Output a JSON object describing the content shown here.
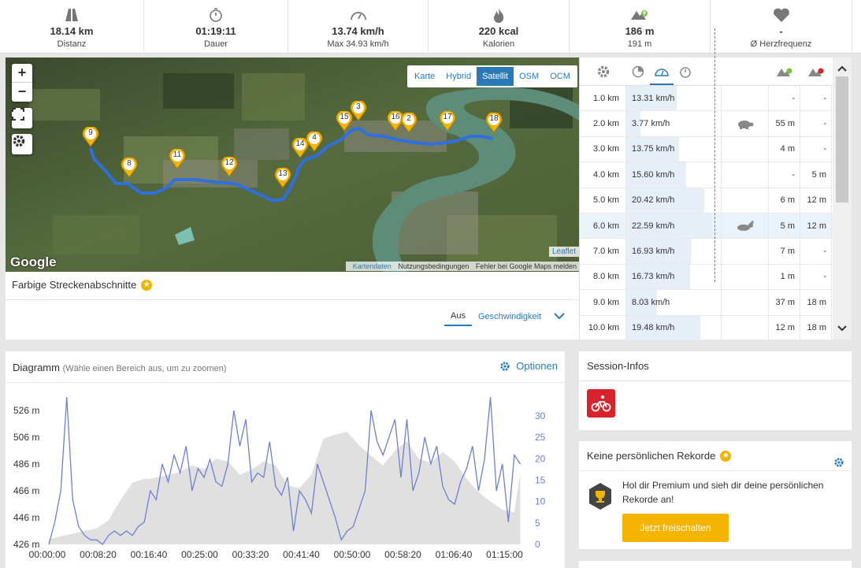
{
  "stats": [
    {
      "icon": "road-icon",
      "value": "18.14 km",
      "label": "Distanz"
    },
    {
      "icon": "stopwatch-icon",
      "value": "01:19:11",
      "label": "Dauer"
    },
    {
      "icon": "speedometer-icon",
      "value": "13.74 km/h",
      "label": "Max 34.93 km/h"
    },
    {
      "icon": "flame-icon",
      "value": "220 kcal",
      "label": "Kalorien"
    },
    {
      "icon": "elevation-up-icon",
      "value": "186 m",
      "label": "191 m"
    },
    {
      "icon": "heart-icon",
      "value": "-",
      "label": "Ø Herzfrequenz"
    }
  ],
  "map": {
    "zoom_in": "+",
    "zoom_out": "−",
    "layers": [
      "Karte",
      "Hybrid",
      "Satellit",
      "OSM",
      "OCM"
    ],
    "active_layer": "Satellit",
    "google_logo": "Google",
    "leaflet": "Leaflet",
    "attribution": [
      "Kartendaten",
      "Nutzungsbedingungen",
      "Fehler bei Google Maps melden"
    ],
    "markers": [
      "9",
      "8",
      "11",
      "12",
      "13",
      "14",
      "4",
      "15",
      "3",
      "16",
      "2",
      "17",
      "18"
    ],
    "route_color": "#2f6fe0"
  },
  "segments": {
    "title": "Farbige Streckenabschnitte",
    "options": [
      "Aus",
      "Geschwindigkeit"
    ],
    "selected": "Aus"
  },
  "splits": {
    "header_icons": [
      "gear-icon",
      "pie-icon",
      "speedometer-icon",
      "stopwatch-icon",
      "elevation-up-icon",
      "elevation-down-icon"
    ],
    "rows": [
      {
        "km": "1.0 km",
        "speed": "13.31 km/h",
        "speed_val": 13.31,
        "icon": "",
        "up": "-",
        "down": "-"
      },
      {
        "km": "2.0 km",
        "speed": "3.77 km/h",
        "speed_val": 3.77,
        "icon": "turtle",
        "up": "55 m",
        "down": "-"
      },
      {
        "km": "3.0 km",
        "speed": "13.75 km/h",
        "speed_val": 13.75,
        "icon": "",
        "up": "4 m",
        "down": "-"
      },
      {
        "km": "4.0 km",
        "speed": "15.60 km/h",
        "speed_val": 15.6,
        "icon": "",
        "up": "-",
        "down": "5 m"
      },
      {
        "km": "5.0 km",
        "speed": "20.42 km/h",
        "speed_val": 20.42,
        "icon": "",
        "up": "6 m",
        "down": "12 m"
      },
      {
        "km": "6.0 km",
        "speed": "22.59 km/h",
        "speed_val": 22.59,
        "icon": "rabbit",
        "up": "5 m",
        "down": "12 m"
      },
      {
        "km": "7.0 km",
        "speed": "16.93 km/h",
        "speed_val": 16.93,
        "icon": "",
        "up": "7 m",
        "down": "-"
      },
      {
        "km": "8.0 km",
        "speed": "16.73 km/h",
        "speed_val": 16.73,
        "icon": "",
        "up": "1 m",
        "down": "-"
      },
      {
        "km": "9.0 km",
        "speed": "8.03 km/h",
        "speed_val": 8.03,
        "icon": "",
        "up": "37 m",
        "down": "18 m"
      },
      {
        "km": "10.0 km",
        "speed": "19.48 km/h",
        "speed_val": 19.48,
        "icon": "",
        "up": "12 m",
        "down": "18 m"
      }
    ]
  },
  "diagram": {
    "title": "Diagramm",
    "hint": "(Wähle einen Bereich aus, um zu zoomen)",
    "options_label": "Optionen"
  },
  "chart_data": {
    "type": "area",
    "y_left_ticks": [
      "526 m",
      "506 m",
      "486 m",
      "466 m",
      "446 m",
      "426 m"
    ],
    "y_right_ticks": [
      "30",
      "25",
      "20",
      "15",
      "10",
      "5",
      "0"
    ],
    "x_ticks": [
      "00:00:00",
      "00:08:20",
      "00:16:40",
      "00:25:00",
      "00:33:20",
      "00:41:40",
      "00:50:00",
      "00:58:20",
      "01:06:40",
      "01:15:00"
    ],
    "ylim_left": [
      426,
      526
    ],
    "ylim_right": [
      0,
      30
    ],
    "series": [
      {
        "name": "",
        "color": "#e0e0e0",
        "x_min": [
          0,
          3,
          6,
          8,
          10,
          12,
          14,
          16,
          17,
          18,
          20,
          22,
          24,
          26,
          28,
          30,
          32,
          34,
          36,
          38,
          40,
          42,
          44,
          46,
          48,
          50,
          52,
          54,
          56,
          58,
          60,
          62,
          64,
          66,
          68,
          70,
          72,
          74,
          76,
          78,
          79
        ],
        "values": [
          430,
          433,
          436,
          438,
          444,
          459,
          472,
          475,
          475,
          476,
          478,
          480,
          485,
          482,
          490,
          488,
          478,
          482,
          488,
          485,
          470,
          468,
          478,
          505,
          508,
          510,
          500,
          492,
          485,
          496,
          503,
          490,
          487,
          495,
          488,
          475,
          465,
          458,
          452,
          450,
          480
        ]
      },
      {
        "name": "",
        "color": "#6f7fd0",
        "x_min": [
          0,
          1,
          2,
          3,
          4,
          5,
          6,
          7,
          8,
          9,
          10,
          11,
          12,
          13,
          14,
          15,
          16,
          17,
          18,
          19,
          20,
          21,
          22,
          23,
          24,
          25,
          26,
          27,
          28,
          29,
          30,
          31,
          32,
          33,
          34,
          35,
          36,
          37,
          38,
          39,
          40,
          41,
          42,
          43,
          44,
          45,
          46,
          47,
          48,
          49,
          50,
          51,
          52,
          53,
          54,
          55,
          56,
          57,
          58,
          59,
          60,
          61,
          62,
          63,
          64,
          65,
          66,
          67,
          68,
          69,
          70,
          71,
          72,
          73,
          74,
          75,
          76,
          77,
          78,
          79
        ],
        "values": [
          0,
          5,
          12,
          33,
          10,
          4,
          2,
          1,
          1,
          0,
          2,
          3,
          2,
          3,
          2,
          4,
          5,
          12,
          10,
          18,
          14,
          20,
          16,
          22,
          12,
          17,
          15,
          19,
          14,
          13,
          18,
          30,
          22,
          28,
          14,
          16,
          15,
          23,
          13,
          11,
          15,
          3,
          12,
          10,
          7,
          18,
          14,
          10,
          6,
          1,
          3,
          4,
          8,
          12,
          30,
          23,
          20,
          24,
          28,
          15,
          28,
          12,
          16,
          24,
          18,
          22,
          13,
          10,
          9,
          14,
          17,
          22,
          12,
          19,
          33,
          12,
          18,
          5,
          20,
          18
        ]
      }
    ]
  },
  "session": {
    "title": "Session-Infos",
    "icon": "cycling-icon"
  },
  "records": {
    "title": "Keine persönlichen Rekorde",
    "text": "Hol dir Premium und sieh dir deine persönlichen Rekorde an!",
    "button": "Jetzt freischalten"
  }
}
